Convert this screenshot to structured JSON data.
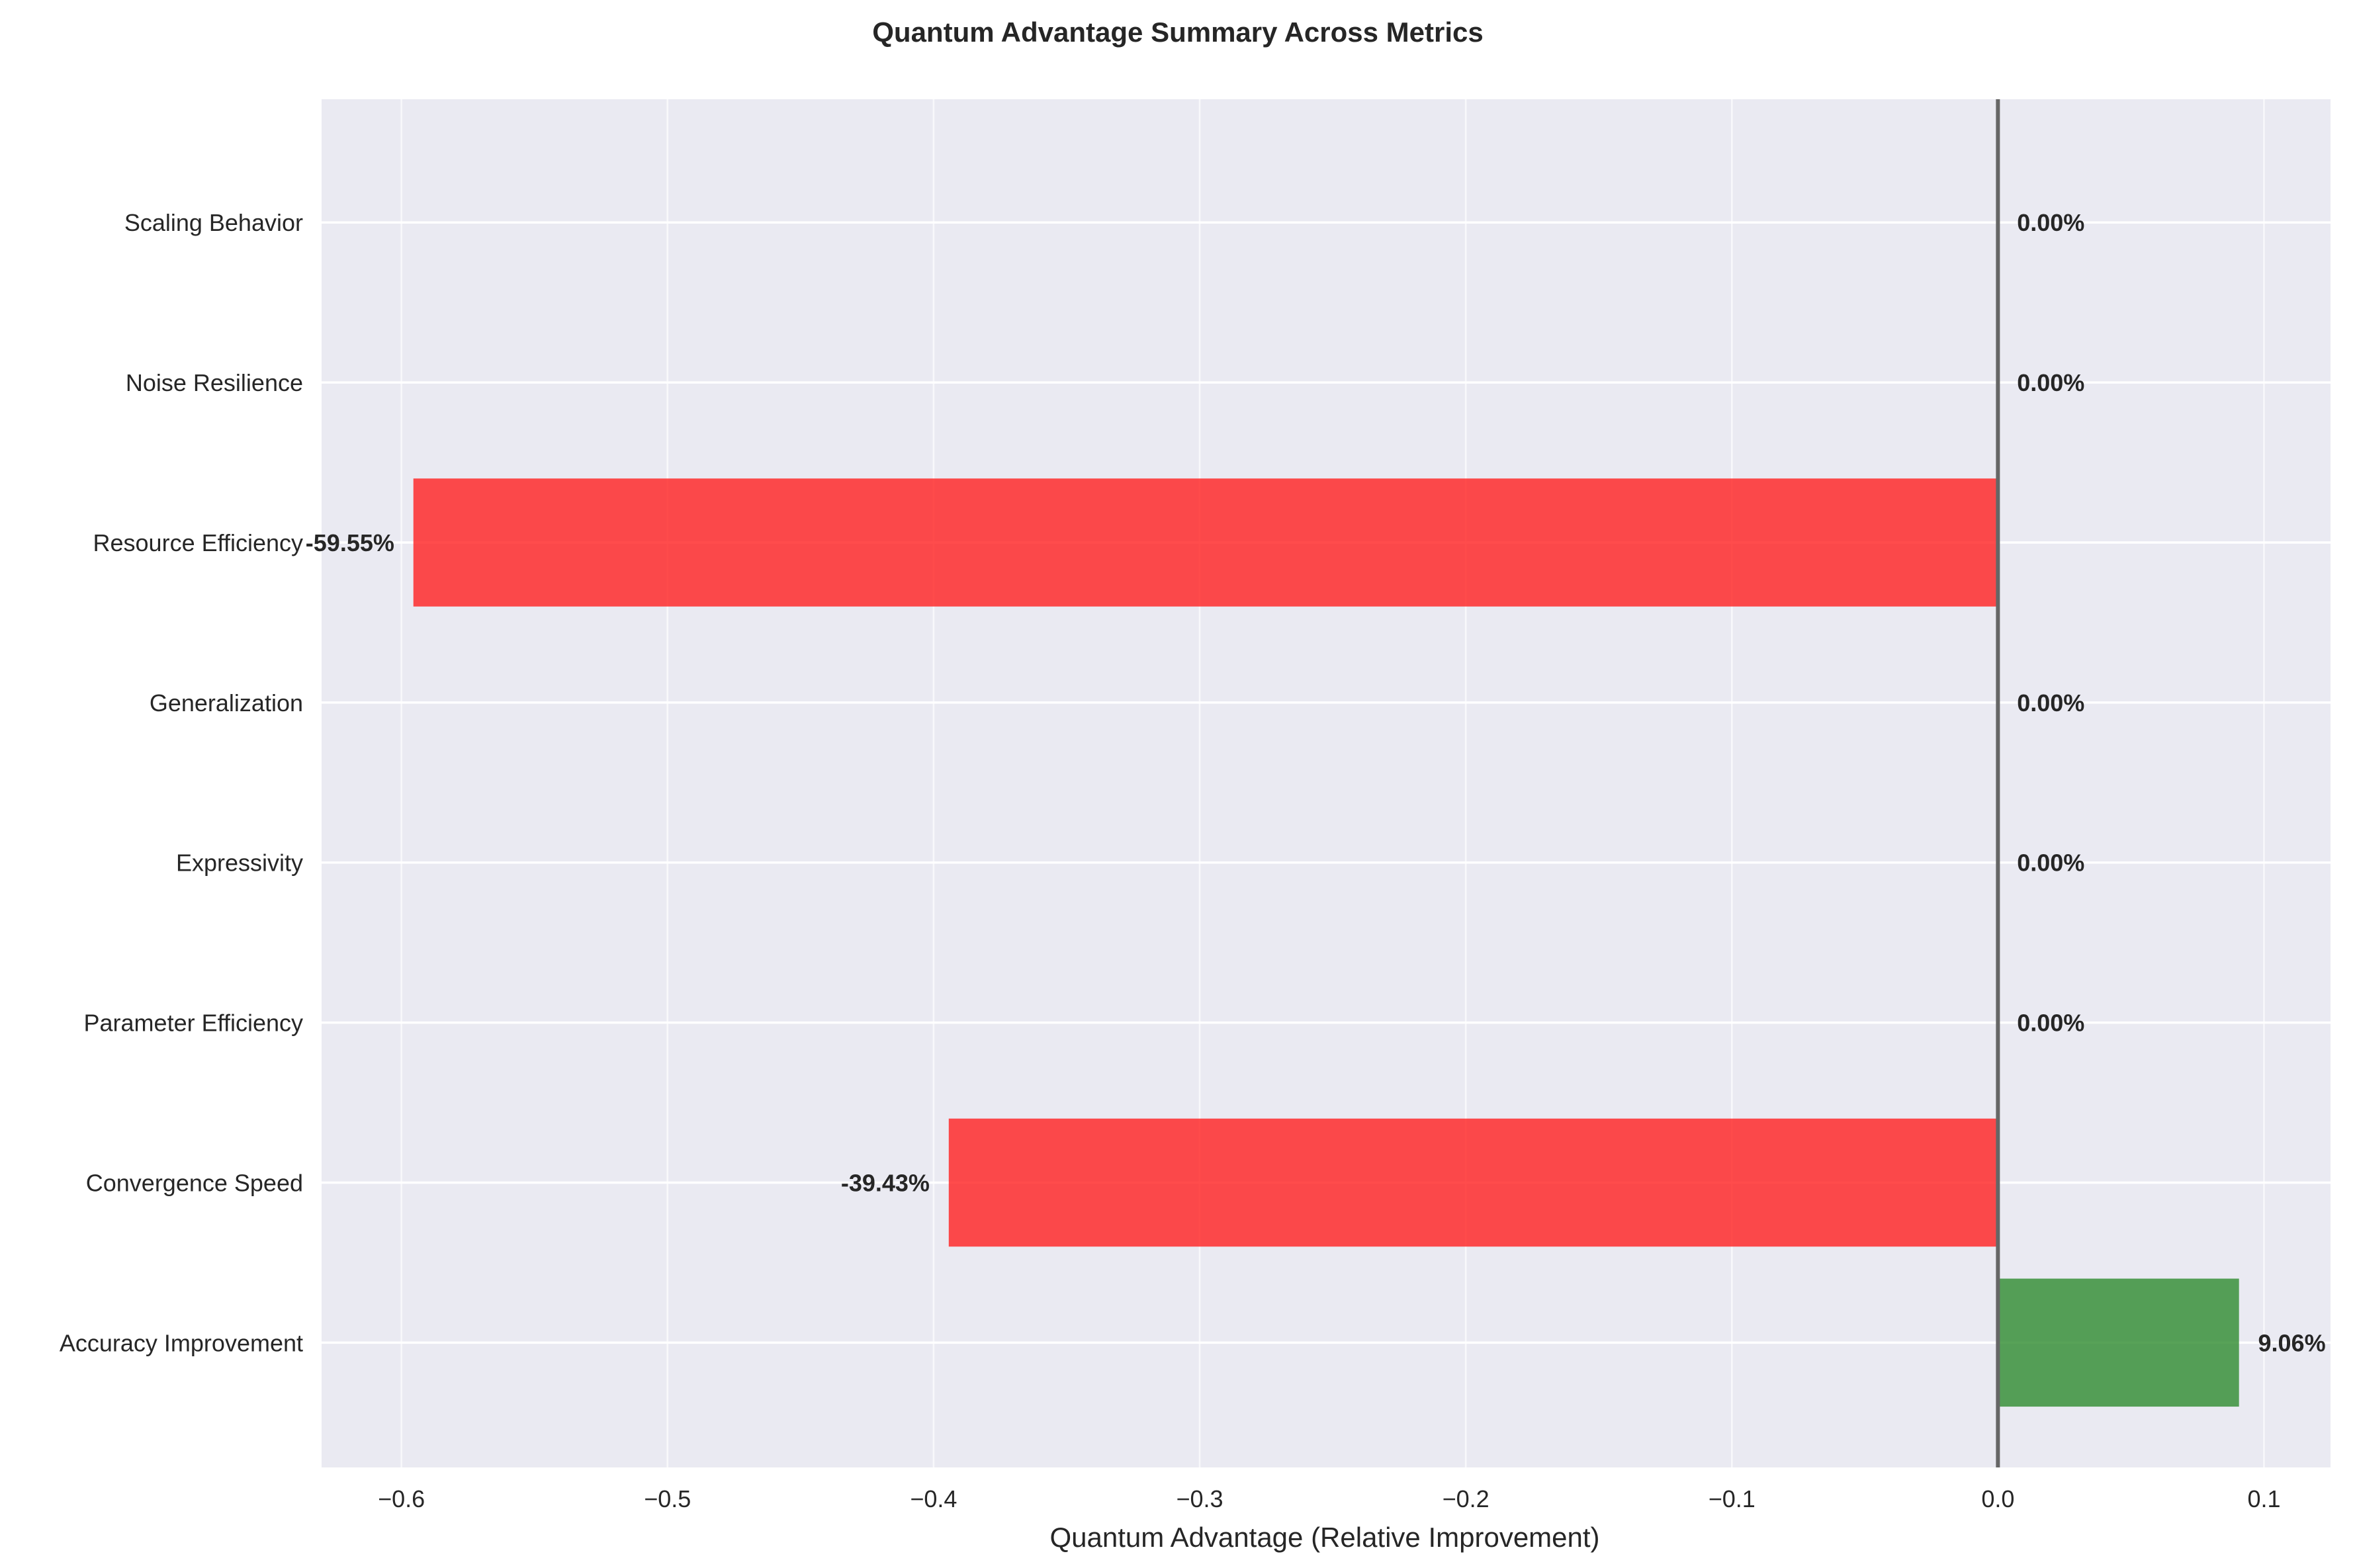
{
  "chart_data": {
    "type": "bar",
    "orientation": "horizontal",
    "title": "Quantum Advantage Summary Across Metrics",
    "xlabel": "Quantum Advantage (Relative Improvement)",
    "ylabel": "",
    "categories": [
      "Accuracy Improvement",
      "Convergence Speed",
      "Parameter Efficiency",
      "Expressivity",
      "Generalization",
      "Resource Efficiency",
      "Noise Resilience",
      "Scaling Behavior"
    ],
    "values": [
      0.0906,
      -0.3943,
      0.0,
      0.0,
      0.0,
      -0.5955,
      0.0,
      0.0
    ],
    "data_labels": [
      "9.06%",
      "-39.43%",
      "0.00%",
      "0.00%",
      "0.00%",
      "-59.55%",
      "0.00%",
      "0.00%"
    ],
    "xlim": [
      -0.63,
      0.125
    ],
    "xticks": [
      -0.6,
      -0.5,
      -0.4,
      -0.3,
      -0.2,
      -0.1,
      0.0,
      0.1
    ],
    "xtick_labels": [
      "−0.6",
      "−0.5",
      "−0.4",
      "−0.3",
      "−0.2",
      "−0.1",
      "0.0",
      "0.1"
    ],
    "grid": true,
    "reference_line_x": 0.0,
    "colors": {
      "positive": "#2e8b2e",
      "negative": "#ff1f1f",
      "plot_background": "#eaeaf2",
      "grid": "#ffffff",
      "reference_line": "#666666",
      "text": "#262626"
    }
  }
}
